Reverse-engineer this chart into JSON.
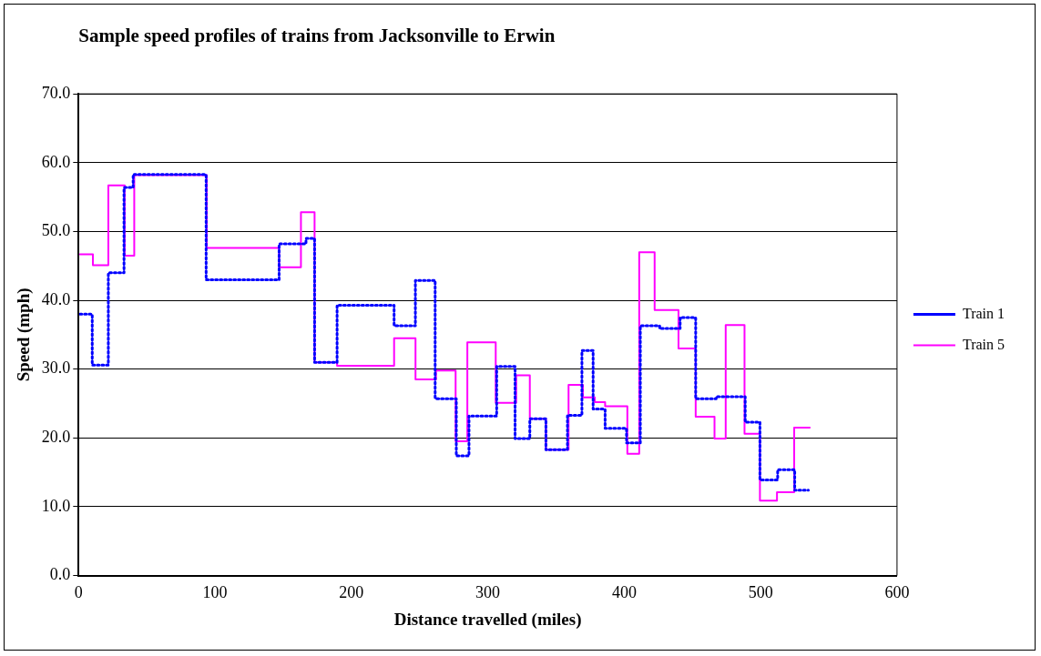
{
  "chart_data": {
    "type": "step",
    "title": "Sample speed profiles of trains from Jacksonville to Erwin",
    "xlabel": "Distance travelled (miles)",
    "ylabel": "Speed (mph)",
    "xlim": [
      0,
      600
    ],
    "xticks": [
      0,
      100,
      200,
      300,
      400,
      500,
      600
    ],
    "ylim": [
      0,
      70
    ],
    "yticks": [
      {
        "value": 0,
        "label": "0.0"
      },
      {
        "value": 10,
        "label": "10.0"
      },
      {
        "value": 20,
        "label": "20.0"
      },
      {
        "value": 30,
        "label": "30.0"
      },
      {
        "value": 40,
        "label": "40.0"
      },
      {
        "value": 50,
        "label": "50.0"
      },
      {
        "value": 60,
        "label": "60.0"
      },
      {
        "value": 70,
        "label": "70.0"
      }
    ],
    "grid": "y",
    "legend": "right",
    "marker": "none",
    "series": [
      {
        "name": "Train 1",
        "color": "#0000ff",
        "line_style": "dotted",
        "x": [
          1,
          10,
          21.8,
          33.3,
          40,
          93.5,
          147,
          166.7,
          173,
          189.5,
          231.3,
          246.9,
          261.4,
          276.9,
          286.2,
          306.5,
          320,
          330.8,
          342.6,
          358.4,
          369,
          377.2,
          386,
          401.7,
          411.8,
          426,
          441,
          452.4,
          467.4,
          488.7,
          499.5,
          512.5,
          525,
          535
        ],
        "values": [
          38.0,
          30.6,
          44.0,
          56.4,
          58.3,
          43.0,
          48.2,
          49.0,
          31.0,
          39.3,
          36.3,
          42.9,
          25.7,
          17.4,
          23.2,
          30.4,
          19.9,
          22.8,
          18.3,
          23.3,
          32.7,
          24.2,
          21.4,
          19.3,
          36.3,
          35.9,
          37.5,
          25.7,
          26.0,
          22.3,
          13.9,
          15.4,
          12.4,
          12.4
        ]
      },
      {
        "name": "Train 5",
        "color": "#ff00ff",
        "line_style": "solid",
        "x": [
          1,
          10.5,
          21.8,
          33.8,
          40.8,
          94,
          147,
          163,
          173,
          189.5,
          231.3,
          247,
          262,
          276.4,
          285,
          305.8,
          320.8,
          330.8,
          342.6,
          359.2,
          369.7,
          378.4,
          386,
          402.3,
          411,
          422.3,
          439.8,
          452.4,
          466.2,
          474.4,
          488.2,
          499.5,
          512,
          524.6,
          536
        ],
        "values": [
          46.7,
          45.1,
          56.7,
          46.5,
          58.2,
          47.6,
          44.8,
          52.8,
          31.0,
          30.5,
          34.5,
          28.5,
          29.8,
          19.5,
          33.9,
          25.1,
          29.1,
          22.8,
          18.3,
          27.7,
          25.9,
          25.2,
          24.6,
          17.7,
          47.0,
          38.6,
          33.0,
          23.1,
          19.9,
          36.4,
          20.6,
          10.9,
          12.1,
          21.5,
          21.5
        ]
      }
    ]
  }
}
